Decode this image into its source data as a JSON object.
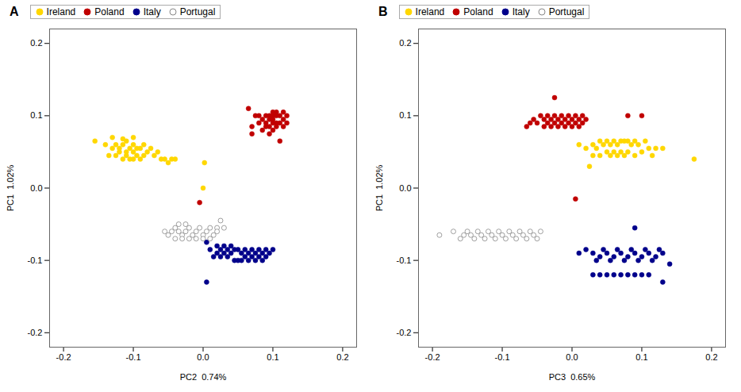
{
  "chart_data": [
    {
      "type": "scatter",
      "title": "A",
      "xlabel": "PC2  0.74%",
      "ylabel": "PC1  1.02%",
      "xlim": [
        -0.22,
        0.22
      ],
      "ylim": [
        -0.22,
        0.22
      ],
      "xticks": [
        -0.2,
        -0.1,
        {
          "value": 0,
          "label": "0.0"
        },
        0.1,
        0.2
      ],
      "yticks": [
        -0.2,
        -0.1,
        {
          "value": 0,
          "label": "0.0"
        },
        0.1,
        0.2
      ],
      "grid": false,
      "legend": "upper left",
      "series": [
        {
          "name": "Ireland",
          "color": "#FFD700",
          "marker": "circle",
          "x": [
            -0.155,
            -0.14,
            -0.135,
            -0.13,
            -0.13,
            -0.125,
            -0.125,
            -0.12,
            -0.12,
            -0.115,
            -0.115,
            -0.115,
            -0.11,
            -0.11,
            -0.11,
            -0.105,
            -0.105,
            -0.1,
            -0.1,
            -0.1,
            -0.1,
            -0.095,
            -0.095,
            -0.09,
            -0.09,
            -0.085,
            -0.085,
            -0.08,
            -0.075,
            -0.07,
            -0.065,
            -0.06,
            -0.055,
            -0.05,
            -0.045,
            -0.04,
            0.0,
            0.002
          ],
          "y": [
            0.065,
            0.06,
            0.045,
            0.055,
            0.07,
            0.045,
            0.06,
            0.05,
            0.055,
            0.04,
            0.06,
            0.068,
            0.045,
            0.05,
            0.065,
            0.04,
            0.055,
            0.04,
            0.05,
            0.06,
            0.07,
            0.045,
            0.055,
            0.04,
            0.055,
            0.045,
            0.06,
            0.05,
            0.055,
            0.045,
            0.05,
            0.04,
            0.04,
            0.035,
            0.04,
            0.04,
            0.0,
            0.035
          ]
        },
        {
          "name": "Poland",
          "color": "#C00000",
          "marker": "circle",
          "x": [
            0.07,
            0.075,
            0.08,
            0.08,
            0.085,
            0.085,
            0.09,
            0.09,
            0.09,
            0.095,
            0.095,
            0.095,
            0.095,
            0.1,
            0.1,
            0.1,
            0.1,
            0.1,
            0.105,
            0.105,
            0.105,
            0.105,
            0.11,
            0.11,
            0.115,
            0.115,
            0.115,
            0.12,
            0.12,
            0.07,
            0.065,
            0.11,
            -0.005
          ],
          "y": [
            0.085,
            0.1,
            0.09,
            0.1,
            0.08,
            0.095,
            0.085,
            0.09,
            0.1,
            0.075,
            0.085,
            0.095,
            0.1,
            0.08,
            0.09,
            0.095,
            0.1,
            0.105,
            0.085,
            0.09,
            0.1,
            0.105,
            0.09,
            0.1,
            0.085,
            0.095,
            0.105,
            0.09,
            0.1,
            0.075,
            0.11,
            0.065,
            -0.02
          ]
        },
        {
          "name": "Italy",
          "color": "#00008B",
          "marker": "circle",
          "x": [
            0.01,
            0.015,
            0.02,
            0.02,
            0.025,
            0.025,
            0.03,
            0.03,
            0.035,
            0.035,
            0.04,
            0.04,
            0.045,
            0.045,
            0.05,
            0.05,
            0.055,
            0.055,
            0.06,
            0.06,
            0.065,
            0.065,
            0.07,
            0.07,
            0.075,
            0.075,
            0.08,
            0.08,
            0.085,
            0.085,
            0.09,
            0.09,
            0.095,
            0.1,
            0.005,
            0.005
          ],
          "y": [
            -0.085,
            -0.095,
            -0.08,
            -0.09,
            -0.085,
            -0.095,
            -0.08,
            -0.09,
            -0.085,
            -0.095,
            -0.08,
            -0.09,
            -0.085,
            -0.1,
            -0.085,
            -0.1,
            -0.09,
            -0.1,
            -0.085,
            -0.095,
            -0.09,
            -0.1,
            -0.085,
            -0.095,
            -0.09,
            -0.1,
            -0.085,
            -0.095,
            -0.09,
            -0.1,
            -0.085,
            -0.095,
            -0.09,
            -0.085,
            -0.13,
            -0.075
          ]
        },
        {
          "name": "Portugal",
          "color": "#888888",
          "marker": "open",
          "x": [
            -0.04,
            -0.035,
            -0.03,
            -0.025,
            -0.02,
            -0.015,
            -0.01,
            -0.005,
            0.0,
            0.005,
            0.01,
            0.015,
            0.02,
            -0.045,
            -0.05,
            -0.055,
            -0.04,
            -0.03,
            -0.02,
            -0.01,
            0.0,
            0.01,
            0.02,
            0.03,
            -0.035,
            -0.025,
            0.025
          ],
          "y": [
            -0.055,
            -0.06,
            -0.065,
            -0.06,
            -0.055,
            -0.065,
            -0.06,
            -0.055,
            -0.065,
            -0.06,
            -0.055,
            -0.065,
            -0.055,
            -0.06,
            -0.065,
            -0.06,
            -0.07,
            -0.07,
            -0.07,
            -0.07,
            -0.07,
            -0.07,
            -0.06,
            -0.055,
            -0.05,
            -0.05,
            -0.045
          ]
        }
      ]
    },
    {
      "type": "scatter",
      "title": "B",
      "xlabel": "PC3  0.65%",
      "ylabel": "PC1  1.02%",
      "xlim": [
        -0.22,
        0.22
      ],
      "ylim": [
        -0.22,
        0.22
      ],
      "xticks": [
        -0.2,
        -0.1,
        {
          "value": 0,
          "label": "0.0"
        },
        0.1,
        0.2
      ],
      "yticks": [
        -0.2,
        -0.1,
        {
          "value": 0,
          "label": "0.0"
        },
        0.1,
        0.2
      ],
      "grid": false,
      "legend": "upper left",
      "series": [
        {
          "name": "Ireland",
          "color": "#FFD700",
          "marker": "circle",
          "x": [
            0.01,
            0.02,
            0.03,
            0.03,
            0.035,
            0.04,
            0.04,
            0.045,
            0.05,
            0.05,
            0.055,
            0.055,
            0.06,
            0.06,
            0.065,
            0.065,
            0.07,
            0.07,
            0.075,
            0.075,
            0.08,
            0.08,
            0.085,
            0.09,
            0.09,
            0.095,
            0.1,
            0.105,
            0.11,
            0.115,
            0.12,
            0.13,
            0.175,
            0.025
          ],
          "y": [
            0.06,
            0.055,
            0.045,
            0.06,
            0.055,
            0.045,
            0.065,
            0.06,
            0.05,
            0.065,
            0.045,
            0.06,
            0.05,
            0.065,
            0.045,
            0.06,
            0.05,
            0.065,
            0.045,
            0.065,
            0.05,
            0.065,
            0.06,
            0.045,
            0.065,
            0.06,
            0.05,
            0.065,
            0.055,
            0.045,
            0.055,
            0.055,
            0.04,
            0.03
          ]
        },
        {
          "name": "Poland",
          "color": "#C00000",
          "marker": "circle",
          "x": [
            -0.065,
            -0.06,
            -0.055,
            -0.05,
            -0.045,
            -0.04,
            -0.04,
            -0.035,
            -0.035,
            -0.03,
            -0.03,
            -0.025,
            -0.025,
            -0.02,
            -0.02,
            -0.015,
            -0.015,
            -0.01,
            -0.01,
            -0.005,
            -0.005,
            0.0,
            0.0,
            0.005,
            0.005,
            0.01,
            0.01,
            0.015,
            0.015,
            0.02,
            0.08,
            0.1,
            -0.025,
            0.005
          ],
          "y": [
            0.085,
            0.09,
            0.095,
            0.09,
            0.1,
            0.085,
            0.095,
            0.09,
            0.1,
            0.085,
            0.095,
            0.09,
            0.1,
            0.085,
            0.095,
            0.09,
            0.1,
            0.085,
            0.095,
            0.09,
            0.1,
            0.085,
            0.095,
            0.09,
            0.1,
            0.085,
            0.095,
            0.09,
            0.1,
            0.095,
            0.1,
            0.1,
            0.125,
            -0.015
          ]
        },
        {
          "name": "Italy",
          "color": "#00008B",
          "marker": "circle",
          "x": [
            0.01,
            0.02,
            0.03,
            0.035,
            0.04,
            0.045,
            0.05,
            0.055,
            0.06,
            0.065,
            0.07,
            0.075,
            0.08,
            0.085,
            0.09,
            0.095,
            0.1,
            0.105,
            0.11,
            0.115,
            0.12,
            0.125,
            0.13,
            0.03,
            0.04,
            0.05,
            0.06,
            0.07,
            0.08,
            0.09,
            0.1,
            0.11,
            0.13,
            0.14,
            0.09
          ],
          "y": [
            -0.09,
            -0.085,
            -0.09,
            -0.1,
            -0.095,
            -0.085,
            -0.09,
            -0.1,
            -0.095,
            -0.085,
            -0.09,
            -0.1,
            -0.095,
            -0.085,
            -0.09,
            -0.1,
            -0.095,
            -0.085,
            -0.09,
            -0.1,
            -0.095,
            -0.085,
            -0.09,
            -0.12,
            -0.12,
            -0.12,
            -0.12,
            -0.12,
            -0.12,
            -0.12,
            -0.12,
            -0.12,
            -0.13,
            -0.105,
            -0.055
          ]
        },
        {
          "name": "Portugal",
          "color": "#888888",
          "marker": "open",
          "x": [
            -0.19,
            -0.17,
            -0.16,
            -0.155,
            -0.15,
            -0.145,
            -0.14,
            -0.135,
            -0.13,
            -0.125,
            -0.12,
            -0.115,
            -0.11,
            -0.105,
            -0.1,
            -0.095,
            -0.09,
            -0.085,
            -0.08,
            -0.075,
            -0.07,
            -0.065,
            -0.06,
            -0.055,
            -0.05,
            -0.045
          ],
          "y": [
            -0.065,
            -0.06,
            -0.07,
            -0.065,
            -0.06,
            -0.065,
            -0.07,
            -0.06,
            -0.065,
            -0.07,
            -0.06,
            -0.065,
            -0.07,
            -0.06,
            -0.065,
            -0.07,
            -0.06,
            -0.065,
            -0.07,
            -0.06,
            -0.065,
            -0.07,
            -0.06,
            -0.065,
            -0.07,
            -0.06
          ]
        }
      ]
    }
  ]
}
